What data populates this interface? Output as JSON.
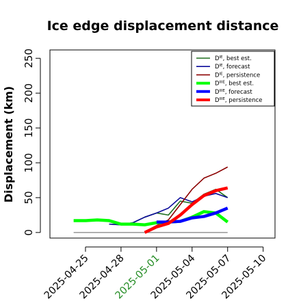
{
  "chart_data": {
    "type": "line",
    "title": "Ice edge displacement distance",
    "xlabel": "",
    "ylabel": "Displacement (km)",
    "xlim": [
      "2025-04-22",
      "2025-05-11"
    ],
    "ylim": [
      -8,
      262
    ],
    "yticks": [
      0,
      50,
      100,
      150,
      200,
      250
    ],
    "xticks": [
      {
        "label": "2025-04-25",
        "date": "2025-04-25",
        "color": "#000000"
      },
      {
        "label": "2025-04-28",
        "date": "2025-04-28",
        "color": "#000000"
      },
      {
        "label": "2025-05-01",
        "date": "2025-05-01",
        "color": "#228b22"
      },
      {
        "label": "2025-05-04",
        "date": "2025-05-04",
        "color": "#000000"
      },
      {
        "label": "2025-05-07",
        "date": "2025-05-07",
        "color": "#000000"
      },
      {
        "label": "2025-05-10",
        "date": "2025-05-10",
        "color": "#000000"
      }
    ],
    "legend_position": "top-right",
    "baseline": {
      "value": 0,
      "from": "2025-04-24",
      "to": "2025-05-07",
      "color": "#808080"
    },
    "series": [
      {
        "name": "D^IE, best est.",
        "color": "#1e6e1e",
        "width": 1.6,
        "x": [
          "2025-04-27",
          "2025-04-28",
          "2025-04-29",
          "2025-04-30",
          "2025-05-01",
          "2025-05-02",
          "2025-05-03",
          "2025-05-04",
          "2025-05-05",
          "2025-05-06",
          "2025-05-07"
        ],
        "y": [
          12,
          11,
          14,
          22,
          28,
          25,
          45,
          42,
          55,
          62,
          50
        ]
      },
      {
        "name": "D^IE, forecast",
        "color": "#0a0a9a",
        "width": 1.6,
        "x": [
          "2025-04-27",
          "2025-04-28",
          "2025-04-29",
          "2025-04-30",
          "2025-05-01",
          "2025-05-02",
          "2025-05-03",
          "2025-05-04",
          "2025-05-05",
          "2025-05-06",
          "2025-05-07"
        ],
        "y": [
          12,
          11,
          14,
          22,
          28,
          35,
          50,
          44,
          52,
          56,
          50
        ]
      },
      {
        "name": "D^IE, persistence",
        "color": "#8b0000",
        "width": 1.6,
        "x": [
          "2025-04-30",
          "2025-05-01",
          "2025-05-02",
          "2025-05-03",
          "2025-05-04",
          "2025-05-05",
          "2025-05-06",
          "2025-05-07"
        ],
        "y": [
          1,
          10,
          18,
          40,
          62,
          78,
          85,
          94
        ]
      },
      {
        "name": "D^IIIE, best est.",
        "color": "#00ff00",
        "width": 4.5,
        "x": [
          "2025-04-24",
          "2025-04-25",
          "2025-04-26",
          "2025-04-27",
          "2025-04-28",
          "2025-04-29",
          "2025-04-30",
          "2025-05-01",
          "2025-05-02",
          "2025-05-03",
          "2025-05-04",
          "2025-05-05",
          "2025-05-06",
          "2025-05-07"
        ],
        "y": [
          17,
          17,
          18,
          17,
          12,
          12,
          11,
          14,
          15,
          16,
          22,
          30,
          28,
          15
        ]
      },
      {
        "name": "D^IIIE, forecast",
        "color": "#0000ff",
        "width": 4.5,
        "x": [
          "2025-05-01",
          "2025-05-02",
          "2025-05-03",
          "2025-05-04",
          "2025-05-05",
          "2025-05-06",
          "2025-05-07"
        ],
        "y": [
          15,
          15,
          16,
          21,
          23,
          28,
          35
        ]
      },
      {
        "name": "D^IIIE, persistence",
        "color": "#ff0000",
        "width": 4.5,
        "x": [
          "2025-04-30",
          "2025-05-01",
          "2025-05-02",
          "2025-05-03",
          "2025-05-04",
          "2025-05-05",
          "2025-05-06",
          "2025-05-07"
        ],
        "y": [
          0,
          8,
          13,
          25,
          40,
          53,
          60,
          64
        ]
      }
    ]
  },
  "legend": [
    {
      "base": "D",
      "sup": "IE",
      "suffix": ", best est."
    },
    {
      "base": "D",
      "sup": "IE",
      "suffix": ", forecast"
    },
    {
      "base": "D",
      "sup": "IE",
      "suffix": ", persistence"
    },
    {
      "base": "D",
      "sup": "IIIE",
      "suffix": ", best est."
    },
    {
      "base": "D",
      "sup": "IIIE",
      "suffix": ", forecast"
    },
    {
      "base": "D",
      "sup": "IIIE",
      "suffix": ", persistence"
    }
  ]
}
